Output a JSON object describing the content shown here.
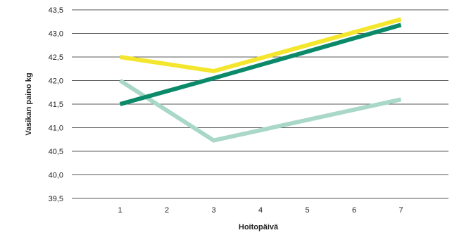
{
  "chart_data": {
    "type": "line",
    "xlabel": "Hoitopäivä",
    "ylabel": "Vasikan paino kg",
    "x": [
      1,
      3,
      7
    ],
    "x_ticks": [
      "1",
      "2",
      "3",
      "4",
      "5",
      "6",
      "7"
    ],
    "y_ticks": [
      "43,5",
      "43,0",
      "42,5",
      "42,0",
      "41,5",
      "41,0",
      "40,5",
      "40,0",
      "39,5"
    ],
    "ylim": [
      39.5,
      43.5
    ],
    "xlim": [
      0,
      8
    ],
    "grid": "horizontal",
    "series": [
      {
        "values": [
          42.5,
          42.2,
          43.3
        ],
        "color": "#f4e62c"
      },
      {
        "values": [
          42.0,
          40.73,
          41.6
        ],
        "color": "#a9d8c8"
      },
      {
        "values": [
          41.5,
          42.05,
          43.18
        ],
        "color": "#0b8a6a"
      }
    ]
  }
}
